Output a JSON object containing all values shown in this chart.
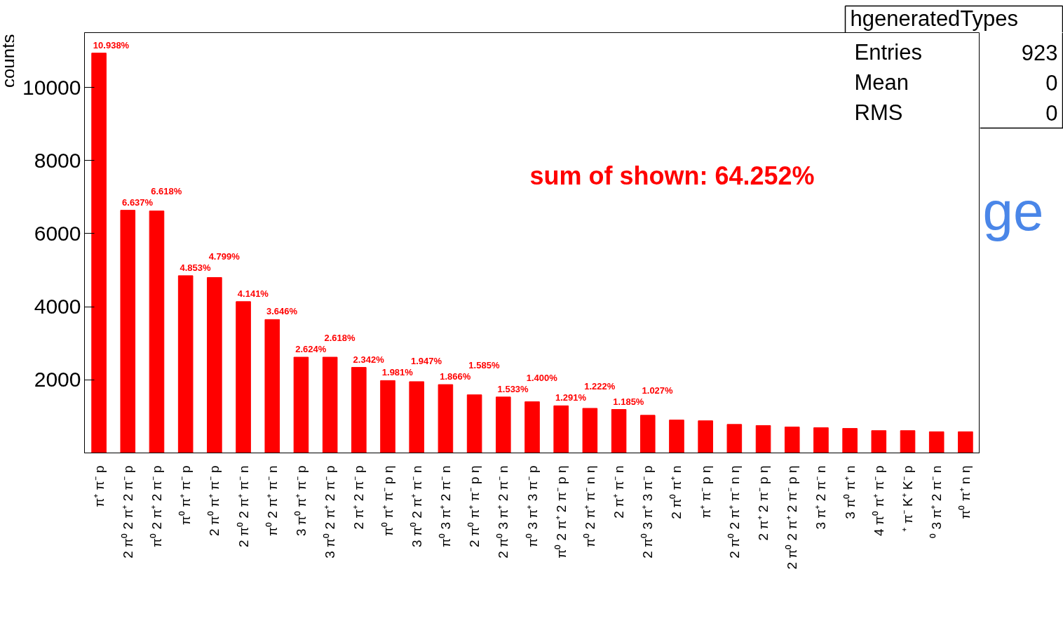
{
  "chart_data": {
    "type": "bar",
    "ylabel": "counts",
    "categories": [
      "π⁺ π⁻ p",
      "2 π⁰ 2 π⁺ 2 π⁻ p",
      "π⁰ 2 π⁺ 2 π⁻ p",
      "π⁰ π⁺ π⁻ p",
      "2 π⁰ π⁺ π⁻ p",
      "2 π⁰ 2 π⁺ π⁻ n",
      "π⁰ 2 π⁺ π⁻ n",
      "3 π⁰ π⁺ π⁻ p",
      "3 π⁰ 2 π⁺ 2 π⁻ p",
      "2 π⁺ 2 π⁻ p",
      "π⁰ π⁺ π⁻ p η",
      "3 π⁰ 2 π⁺ π⁻ n",
      "π⁰ 3 π⁺ 2 π⁻ n",
      "2 π⁰ π⁺ π⁻ p η",
      "2 π⁰ 3 π⁺ 2 π⁻ n",
      "π⁰ 3 π⁺ 3 π⁻ p",
      "π⁰ 2 π⁺ 2 π⁻ p η",
      "π⁰ 2 π⁺ π⁻ n η",
      "2 π⁺ π⁻ n",
      "2 π⁰ 3 π⁺ 3 π⁻ p",
      "2 π⁰ π⁺ n",
      "π⁺ π⁻ p η",
      "2 π⁰ 2 π⁺ π⁻ n η",
      "2 π⁺ 2 π⁻ p η",
      "2 π⁰ 2 π⁺ 2 π⁻ p η",
      "3 π⁺ 2 π⁻ n",
      "3 π⁰ π⁺ n",
      "4 π⁰ π⁺ π⁻ p",
      "⁺ π⁻ K⁺ K⁻ p",
      "⁰ 3 π⁺ 2 π⁻ n",
      "π⁰ π⁺ n η"
    ],
    "values": [
      10940,
      6640,
      6620,
      4850,
      4800,
      4140,
      3650,
      2620,
      2620,
      2340,
      1980,
      1950,
      1870,
      1590,
      1530,
      1400,
      1290,
      1220,
      1190,
      1030,
      900,
      880,
      780,
      750,
      710,
      690,
      670,
      610,
      610,
      580,
      580
    ],
    "color": "#ff0000",
    "ylim": [
      0,
      11500
    ],
    "yticks": [
      2000,
      4000,
      6000,
      8000,
      10000
    ],
    "grid": false,
    "annotations": [
      "hgeneratedTypes",
      "Entries",
      "923",
      "Mean",
      "0",
      "RMS",
      "0",
      "sum of shown: 64.252%",
      "ge",
      {
        "text": "10.938%",
        "x": "π⁺ π⁻ p",
        "y": 10940
      },
      {
        "text": "6.637%",
        "x": "2 π⁰ 2 π⁺ 2 π⁻ p",
        "y": 6640
      },
      {
        "text": "6.618%",
        "x": "π⁰ 2 π⁺ 2 π⁻ p",
        "y": 6620
      },
      {
        "text": "4.853%",
        "x": "π⁰ π⁺ π⁻ p",
        "y": 4850
      },
      {
        "text": "4.799%",
        "x": "2 π⁰ π⁺ π⁻ p",
        "y": 4800
      },
      {
        "text": "4.141%",
        "x": "2 π⁰ 2 π⁺ π⁻ n",
        "y": 4140
      },
      {
        "text": "3.646%",
        "x": "π⁰ 2 π⁺ π⁻ n",
        "y": 3650
      },
      {
        "text": "2.624%",
        "x": "3 π⁰ π⁺ π⁻ p",
        "y": 2620
      },
      {
        "text": "2.618%",
        "x": "3 π⁰ 2 π⁺ 2 π⁻ p",
        "y": 2620
      },
      {
        "text": "2.342%",
        "x": "2 π⁺ 2 π⁻ p",
        "y": 2340
      },
      {
        "text": "1.981%",
        "x": "π⁰ π⁺ π⁻ p η",
        "y": 1980
      },
      {
        "text": "1.947%",
        "x": "3 π⁰ 2 π⁺ π⁻ n",
        "y": 1950
      },
      {
        "text": "1.866%",
        "x": "π⁰ 3 π⁺ 2 π⁻ n",
        "y": 1870
      },
      {
        "text": "1.585%",
        "x": "2 π⁰ π⁺ π⁻ p η",
        "y": 1590
      },
      {
        "text": "1.533%",
        "x": "2 π⁰ 3 π⁺ 2 π⁻ n",
        "y": 1530
      },
      {
        "text": "1.400%",
        "x": "π⁰ 3 π⁺ 3 π⁻ p",
        "y": 1400
      },
      {
        "text": "1.291%",
        "x": "π⁰ 2 π⁺ 2 π⁻ p η",
        "y": 1290
      },
      {
        "text": "1.222%",
        "x": "π⁰ 2 π⁺ π⁻ n η",
        "y": 1220
      },
      {
        "text": "1.185%",
        "x": "2 π⁺ π⁻ n",
        "y": 1190
      },
      {
        "text": "1.027%",
        "x": "2 π⁰ 3 π⁺ 3 π⁻ p",
        "y": 1030
      }
    ]
  }
}
